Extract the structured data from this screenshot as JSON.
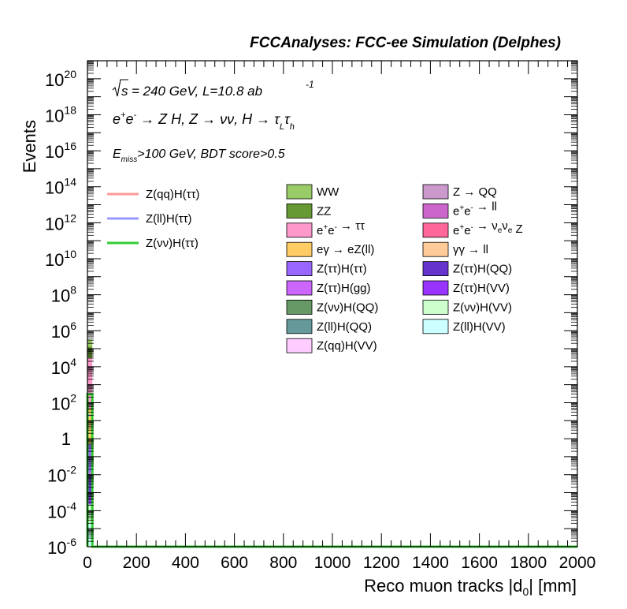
{
  "chart_data": {
    "type": "bar",
    "header": "FCCAnalyses: FCC-ee Simulation (Delphes)",
    "annotations": {
      "sqrt_s": "= 240 GeV, L=10.8 ab",
      "lumi_exp": "-1",
      "process": "e+e- → Z H, Z → νν, H → τLτh",
      "cuts": "Emiss>100 GeV, BDT score>0.5"
    },
    "xlabel": "Reco muon tracks |d0| [mm]",
    "ylabel": "Events",
    "xlim": [
      0,
      2000
    ],
    "ylim": [
      1e-06,
      1e+21
    ],
    "yscale": "log",
    "x_ticks": [
      "0",
      "200",
      "400",
      "600",
      "800",
      "1000",
      "1200",
      "1400",
      "1600",
      "1800",
      "2000"
    ],
    "y_ticks": [
      {
        "base": "10",
        "exp": "-6",
        "value": 1e-06
      },
      {
        "base": "10",
        "exp": "-4",
        "value": 0.0001
      },
      {
        "base": "10",
        "exp": "-2",
        "value": 0.01
      },
      {
        "base": "1",
        "exp": "",
        "value": 1
      },
      {
        "base": "10",
        "exp": "2",
        "value": 100.0
      },
      {
        "base": "10",
        "exp": "4",
        "value": 10000.0
      },
      {
        "base": "10",
        "exp": "6",
        "value": 1000000.0
      },
      {
        "base": "10",
        "exp": "8",
        "value": 100000000.0
      },
      {
        "base": "10",
        "exp": "10",
        "value": 10000000000.0
      },
      {
        "base": "10",
        "exp": "12",
        "value": 1000000000000.0
      },
      {
        "base": "10",
        "exp": "14",
        "value": 100000000000000.0
      },
      {
        "base": "10",
        "exp": "16",
        "value": 1e+16
      },
      {
        "base": "10",
        "exp": "18",
        "value": 1e+18
      },
      {
        "base": "10",
        "exp": "20",
        "value": 1e+20
      }
    ],
    "first_bin": [
      0,
      20
    ],
    "stack_first_bin": [
      {
        "name": "Z(ll)H(VV)",
        "color": "#ccffff",
        "value": 2e-05
      },
      {
        "name": "Z(νν)H(VV)",
        "color": "#ccffcc",
        "value": 0.0002
      },
      {
        "name": "Z(ττ)H(VV)",
        "color": "#9933ff",
        "value": 0.0005
      },
      {
        "name": "Z(ττ)H(QQ)",
        "color": "#6633cc",
        "value": 0.01
      },
      {
        "name": "Z(ττ)H(gg)",
        "color": "#cc66ff",
        "value": 0.003
      },
      {
        "name": "Z(ττ)H(ττ)",
        "color": "#9966ff",
        "value": 0.5
      },
      {
        "name": "eγ → eZ(ll)",
        "color": "#ffcc66",
        "value": 50
      },
      {
        "name": "e+e- → ττ",
        "color": "#ff99cc",
        "value": 30000
      },
      {
        "name": "ZZ",
        "color": "#669933",
        "value": 100000
      },
      {
        "name": "WW",
        "color": "#99cc66",
        "value": 200000
      }
    ],
    "signals_first_bin": [
      {
        "name": "Z(qq)H(ττ)",
        "color": "#ff9999",
        "value": 5
      },
      {
        "name": "Z(ll)H(ττ)",
        "color": "#9999ff",
        "value": 20
      },
      {
        "name": "Z(νν)H(ττ)",
        "color": "#33cc33",
        "value": 300
      }
    ],
    "legend_signals": [
      {
        "label": "Z(qq)H(ττ)",
        "color": "#ff9999"
      },
      {
        "label": "Z(ll)H(ττ)",
        "color": "#9999ff"
      },
      {
        "label": "Z(νν)H(ττ)",
        "color": "#33cc33"
      }
    ],
    "legend_col1": [
      {
        "label": "WW",
        "color": "#99cc66"
      },
      {
        "label": "ZZ",
        "color": "#669933"
      },
      {
        "label": "e+e- → ττ",
        "color": "#ff99cc"
      },
      {
        "label": "eγ → eZ(ll)",
        "color": "#ffcc66"
      },
      {
        "label": "Z(ττ)H(ττ)",
        "color": "#9966ff"
      },
      {
        "label": "Z(ττ)H(gg)",
        "color": "#cc66ff"
      },
      {
        "label": "Z(νν)H(QQ)",
        "color": "#669966"
      },
      {
        "label": "Z(ll)H(QQ)",
        "color": "#669999"
      },
      {
        "label": "Z(qq)H(VV)",
        "color": "#ffccff"
      }
    ],
    "legend_col2": [
      {
        "label": "Z → QQ",
        "color": "#cc99cc"
      },
      {
        "label": "e+e- → ll",
        "color": "#cc66cc"
      },
      {
        "label": "e+e- → νeνe Z",
        "color": "#ff6699"
      },
      {
        "label": "γγ → ll",
        "color": "#ffcc99"
      },
      {
        "label": "Z(ττ)H(QQ)",
        "color": "#6633cc"
      },
      {
        "label": "Z(ττ)H(VV)",
        "color": "#9933ff"
      },
      {
        "label": "Z(νν)H(VV)",
        "color": "#ccffcc"
      },
      {
        "label": "Z(ll)H(VV)",
        "color": "#ccffff"
      }
    ]
  }
}
